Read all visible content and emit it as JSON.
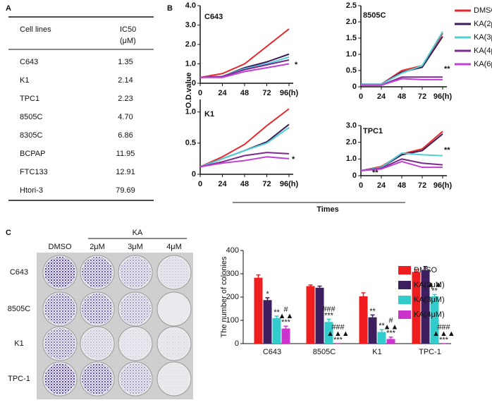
{
  "panel_labels": [
    "A",
    "B",
    "C"
  ],
  "table": {
    "header": {
      "name": "Cell lines",
      "ic50": [
        "IC50",
        "(μM)"
      ]
    },
    "rows": [
      [
        "C643",
        "1.35"
      ],
      [
        "K1",
        "2.14"
      ],
      [
        "TPC1",
        "2.23"
      ],
      [
        "8505C",
        "4.70"
      ],
      [
        "8305C",
        "6.86"
      ],
      [
        "BCPAP",
        "11.95"
      ],
      [
        "FTC133",
        "12.91"
      ],
      [
        "Htori-3",
        "79.69"
      ]
    ]
  },
  "line_legend": {
    "names": [
      "DMSO",
      "KA(2μM)",
      "KA(3μM)",
      "KA(4μM)",
      "KA(6μM)"
    ],
    "colors": [
      "#e8262a",
      "#3b1a5a",
      "#4fd1d4",
      "#7a2b8c",
      "#c23fd6"
    ]
  },
  "line_axes": {
    "ylabel": "O.D.value",
    "xlabel": "Times"
  },
  "plates": {
    "group": "KA",
    "columns": [
      "DMSO",
      "2μM",
      "3μM",
      "4μM"
    ],
    "rows": [
      "C643",
      "8505C",
      "K1",
      "TPC-1"
    ]
  },
  "chart_data": [
    {
      "type": "line",
      "title": "C643",
      "categories": [
        "0",
        "24",
        "48",
        "72",
        "96(h)"
      ],
      "series": [
        {
          "values": [
            0.3,
            0.5,
            1.0,
            1.9,
            2.8
          ]
        },
        {
          "values": [
            0.3,
            0.35,
            0.8,
            1.1,
            1.5
          ]
        },
        {
          "values": [
            0.3,
            0.35,
            0.75,
            1.0,
            1.35
          ]
        },
        {
          "values": [
            0.3,
            0.35,
            0.7,
            0.95,
            1.2
          ]
        },
        {
          "values": [
            0.3,
            0.3,
            0.6,
            0.8,
            1.0
          ]
        }
      ],
      "ylim": [
        0,
        4
      ],
      "yticks": [
        0,
        {
          "value": 1,
          "label": "1.0"
        },
        {
          "value": 2,
          "label": "2.0"
        },
        {
          "value": 3,
          "label": "3.0"
        },
        {
          "value": 4,
          "label": "4.0"
        }
      ],
      "annotations": [
        "*"
      ]
    },
    {
      "type": "line",
      "title": "8505C",
      "categories": [
        "0",
        "24",
        "48",
        "72",
        "96(h)"
      ],
      "series": [
        {
          "values": [
            0.08,
            0.08,
            0.5,
            0.65,
            1.65
          ]
        },
        {
          "values": [
            0.08,
            0.08,
            0.45,
            0.6,
            1.55
          ]
        },
        {
          "values": [
            0.08,
            0.08,
            0.42,
            0.65,
            1.7
          ]
        },
        {
          "values": [
            0.05,
            0.05,
            0.3,
            0.3,
            0.3
          ]
        },
        {
          "values": [
            0.05,
            0.05,
            0.25,
            0.22,
            0.22
          ]
        }
      ],
      "ylim": [
        0,
        2.5
      ],
      "yticks": [
        0,
        0.5,
        {
          "value": 1,
          "label": "1.0"
        },
        1.5,
        {
          "value": 2,
          "label": "2.0"
        },
        2.5
      ],
      "annotations": [
        "**"
      ]
    },
    {
      "type": "line",
      "title": "K1",
      "categories": [
        "0",
        "24",
        "48",
        "72",
        "96(h)"
      ],
      "series": [
        {
          "values": [
            0.12,
            0.28,
            0.48,
            0.78,
            1.05
          ]
        },
        {
          "values": [
            0.12,
            0.25,
            0.38,
            0.52,
            0.8
          ]
        },
        {
          "values": [
            0.12,
            0.25,
            0.38,
            0.5,
            0.75
          ]
        },
        {
          "values": [
            0.12,
            0.2,
            0.3,
            0.35,
            0.33
          ]
        },
        {
          "values": [
            0.12,
            0.18,
            0.22,
            0.28,
            0.25
          ]
        }
      ],
      "ylim": [
        0,
        1.2
      ],
      "yticks": [
        0,
        0.5,
        {
          "value": 1,
          "label": "1.0"
        }
      ],
      "annotations": [
        "*"
      ]
    },
    {
      "type": "line",
      "title": "TPC1",
      "categories": [
        "0",
        "24",
        "48",
        "72",
        "96(h)"
      ],
      "series": [
        {
          "values": [
            0.3,
            0.55,
            1.3,
            1.6,
            2.65
          ]
        },
        {
          "values": [
            0.3,
            0.5,
            1.25,
            1.5,
            2.5
          ]
        },
        {
          "values": [
            0.3,
            0.5,
            1.35,
            1.25,
            1.2
          ]
        },
        {
          "values": [
            0.3,
            0.45,
            1.0,
            0.75,
            0.65
          ]
        },
        {
          "values": [
            0.3,
            0.4,
            0.85,
            0.5,
            0.5
          ]
        }
      ],
      "ylim": [
        0,
        3
      ],
      "yticks": [
        0,
        {
          "value": 1,
          "label": "1.0"
        },
        {
          "value": 2,
          "label": "2.0"
        },
        {
          "value": 3,
          "label": "3.0"
        }
      ],
      "annotations": [
        "**",
        "**"
      ]
    },
    {
      "type": "bar",
      "ylabel": "The number of colonies",
      "categories": [
        "C643",
        "8505C",
        "K1",
        "TPC-1"
      ],
      "series": [
        {
          "name": "DMSO",
          "color": "#ef1d1d",
          "values": [
            283,
            247,
            203,
            308
          ],
          "errors": [
            12,
            5,
            15,
            10
          ]
        },
        {
          "name": "KA(2μM)",
          "color": "#3d1e5e",
          "values": [
            187,
            240,
            113,
            316
          ],
          "errors": [
            10,
            7,
            10,
            15
          ],
          "marks": [
            [
              "*"
            ],
            null,
            [
              "**"
            ],
            null
          ]
        },
        {
          "name": "KA(3μM)",
          "color": "#33cccc",
          "values": [
            110,
            93,
            50,
            203
          ],
          "errors": [
            8,
            12,
            10,
            8
          ],
          "marks": [
            [
              "**"
            ],
            [
              "###",
              "***"
            ],
            [
              "**"
            ],
            [
              "▲▲",
              "**"
            ]
          ]
        },
        {
          "name": "KA(4μM)",
          "color": "#cc33cc",
          "values": [
            65,
            0,
            20,
            0
          ],
          "errors": [
            10,
            0,
            8,
            0
          ],
          "marks": [
            [
              "#",
              "▲▲",
              "***"
            ],
            [
              "###",
              "▲▲▲",
              "***"
            ],
            [
              "#",
              "▲▲",
              "***"
            ],
            [
              "###",
              "▲▲▲",
              "***"
            ]
          ]
        }
      ],
      "ylim": [
        0,
        400
      ],
      "yticks": [
        0,
        100,
        200,
        300,
        400
      ]
    }
  ]
}
